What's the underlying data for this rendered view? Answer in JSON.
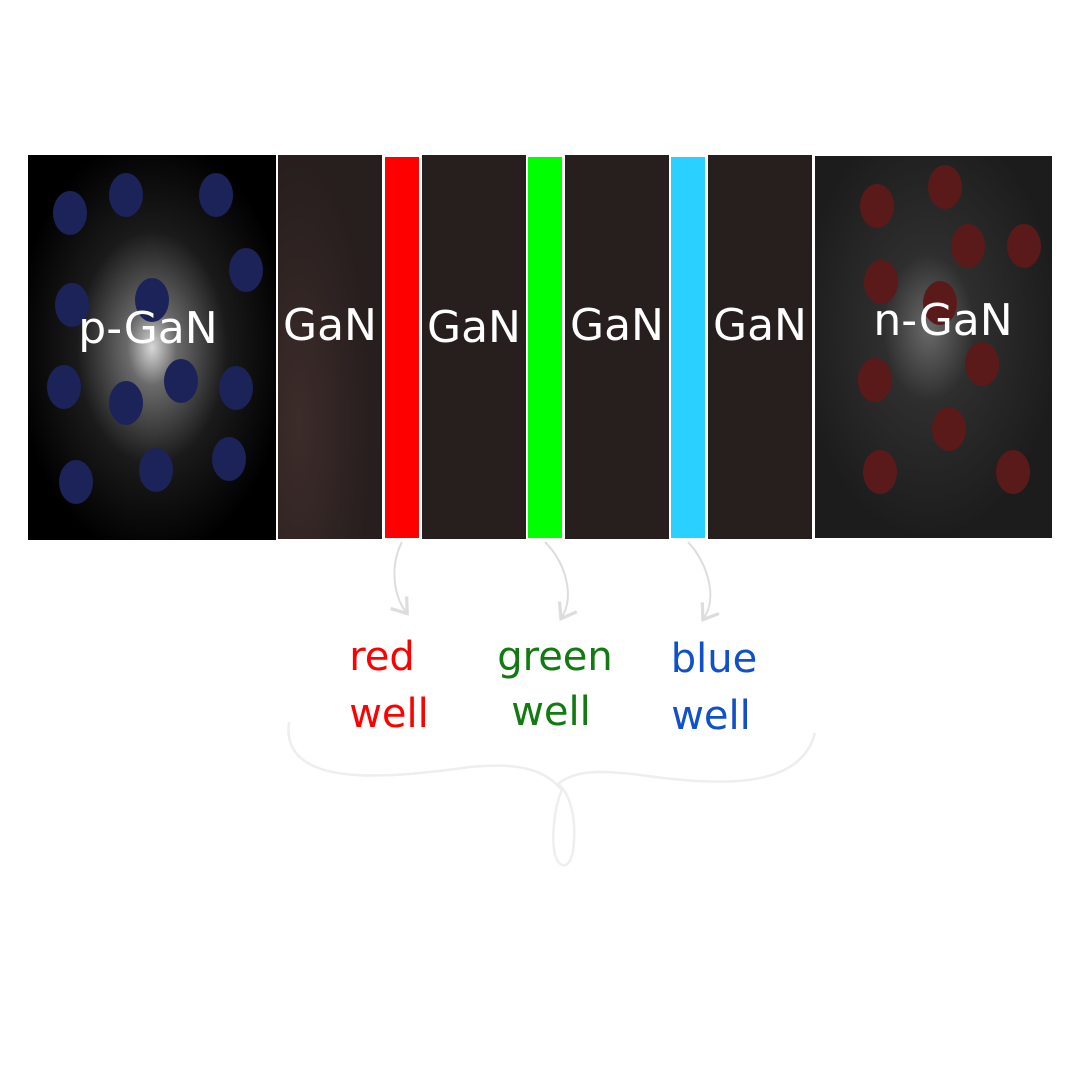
{
  "layers": {
    "p_gan": {
      "label": "p-GaN",
      "carrier_color": "#1c2358"
    },
    "gan_1": {
      "label": "GaN"
    },
    "gan_2": {
      "label": "GaN"
    },
    "gan_3": {
      "label": "GaN"
    },
    "gan_4": {
      "label": "GaN"
    },
    "n_gan": {
      "label": "n-GaN",
      "carrier_color": "#5a1a1a"
    }
  },
  "wells": [
    {
      "line1": "red",
      "line2": "well",
      "bar_color": "#ff0000",
      "text_color": "#ff0000"
    },
    {
      "line1": "green",
      "line2": "well",
      "bar_color": "#00ff00",
      "text_color": "#117a11"
    },
    {
      "line1": "blue",
      "line2": "well",
      "bar_color": "#2ad0ff",
      "text_color": "#1050c8"
    }
  ]
}
